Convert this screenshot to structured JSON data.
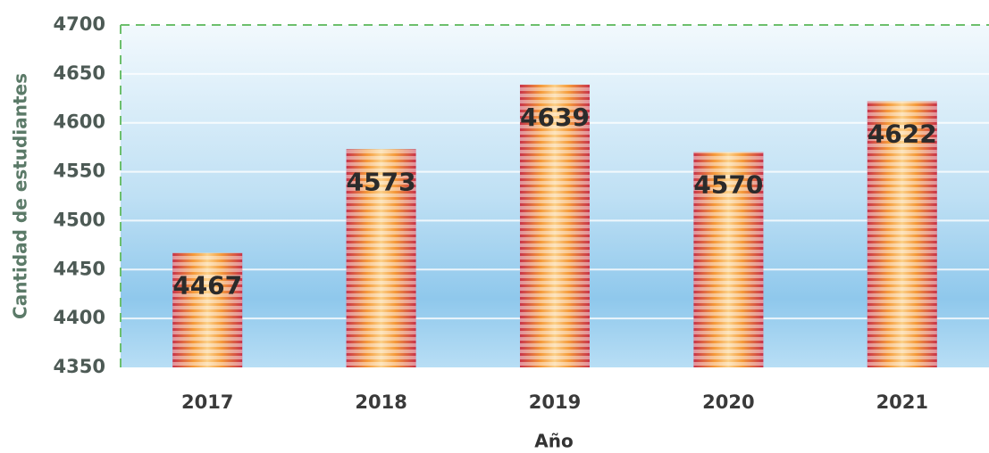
{
  "chart_data": {
    "type": "bar",
    "categories": [
      "2017",
      "2018",
      "2019",
      "2020",
      "2021"
    ],
    "values": [
      4467,
      4573,
      4639,
      4570,
      4622
    ],
    "ylim": [
      4350,
      4700
    ],
    "yticks": [
      4350,
      4400,
      4450,
      4500,
      4550,
      4600,
      4650,
      4700
    ],
    "xlabel": "Año",
    "ylabel": "Cantidad de estudiantes",
    "grid": true,
    "color": "#f08a3c"
  }
}
